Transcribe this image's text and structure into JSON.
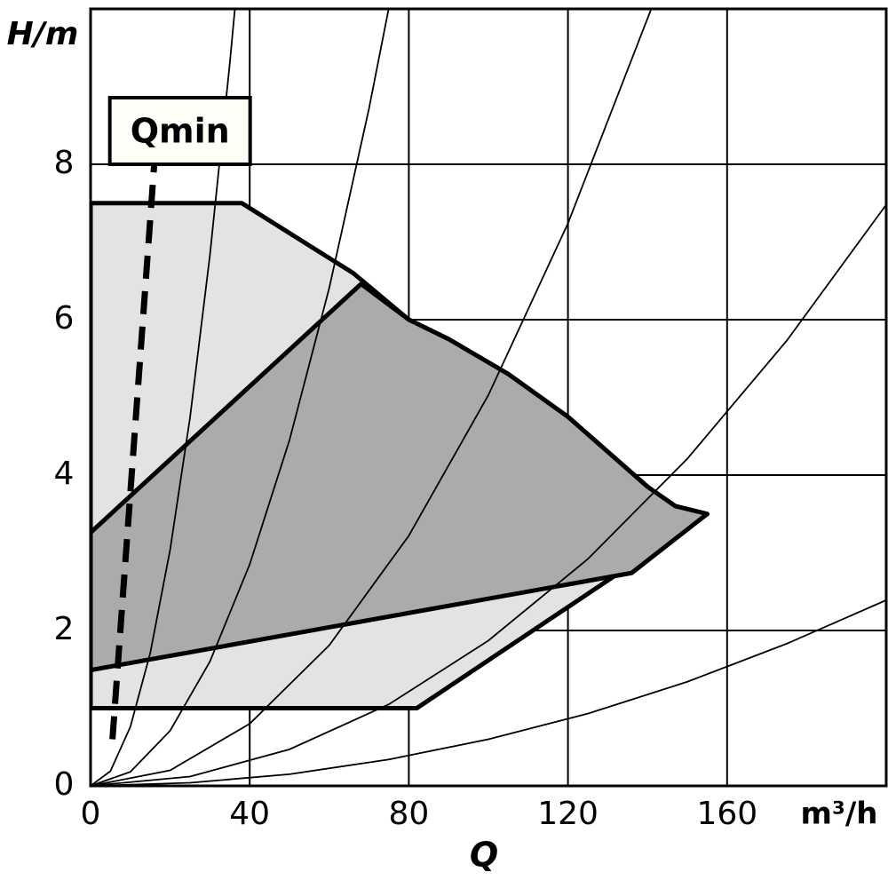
{
  "chart_data": {
    "type": "line",
    "y_label": "H/m",
    "x_label": "Q",
    "x_unit": "m³/h",
    "xlim": [
      0,
      200
    ],
    "ylim": [
      0,
      10
    ],
    "xticks": [
      0,
      40,
      80,
      120,
      160
    ],
    "yticks": [
      0,
      2,
      4,
      6,
      8
    ],
    "grid": true,
    "regions": [
      {
        "color": "#e3e3e3",
        "x": [
          0,
          38,
          66,
          80,
          90,
          105,
          120,
          130,
          140,
          147,
          155,
          82,
          0
        ],
        "values": [
          7.5,
          7.5,
          6.6,
          6.0,
          5.75,
          5.3,
          4.75,
          4.3,
          3.85,
          3.6,
          3.5,
          1.0,
          1.0
        ]
      },
      {
        "color": "#ababab",
        "x": [
          0,
          68,
          80,
          90,
          105,
          120,
          130,
          140,
          147,
          155,
          136,
          0
        ],
        "values": [
          3.26,
          6.46,
          6.0,
          5.75,
          5.3,
          4.75,
          4.3,
          3.85,
          3.6,
          3.5,
          2.74,
          1.49
        ]
      }
    ],
    "series": [
      {
        "color": "#000000",
        "x": [
          0,
          5,
          10,
          15,
          20,
          25,
          30,
          35,
          37
        ],
        "values": [
          0,
          0.19,
          0.76,
          1.71,
          3.04,
          4.74,
          6.83,
          9.3,
          10.4
        ]
      },
      {
        "color": "#000000",
        "x": [
          0,
          10,
          20,
          30,
          40,
          50,
          60,
          70,
          76
        ],
        "values": [
          0,
          0.18,
          0.71,
          1.6,
          2.85,
          4.45,
          6.41,
          8.72,
          10.28
        ]
      },
      {
        "color": "#000000",
        "x": [
          0,
          20,
          40,
          60,
          80,
          100,
          120,
          142
        ],
        "values": [
          0,
          0.2,
          0.8,
          1.81,
          3.22,
          5.03,
          7.24,
          10.14
        ]
      },
      {
        "color": "#000000",
        "x": [
          0,
          25,
          50,
          75,
          100,
          125,
          150,
          175,
          200
        ],
        "values": [
          0,
          0.12,
          0.47,
          1.05,
          1.87,
          2.92,
          4.21,
          5.73,
          7.48
        ]
      },
      {
        "color": "#000000",
        "x": [
          0,
          25,
          50,
          75,
          100,
          125,
          150,
          175,
          200
        ],
        "values": [
          0,
          0.04,
          0.15,
          0.34,
          0.6,
          0.93,
          1.34,
          1.83,
          2.39
        ]
      }
    ],
    "qmin": {
      "label": "Qmin",
      "x": [
        5.5,
        16
      ],
      "values": [
        0.6,
        8
      ]
    }
  }
}
